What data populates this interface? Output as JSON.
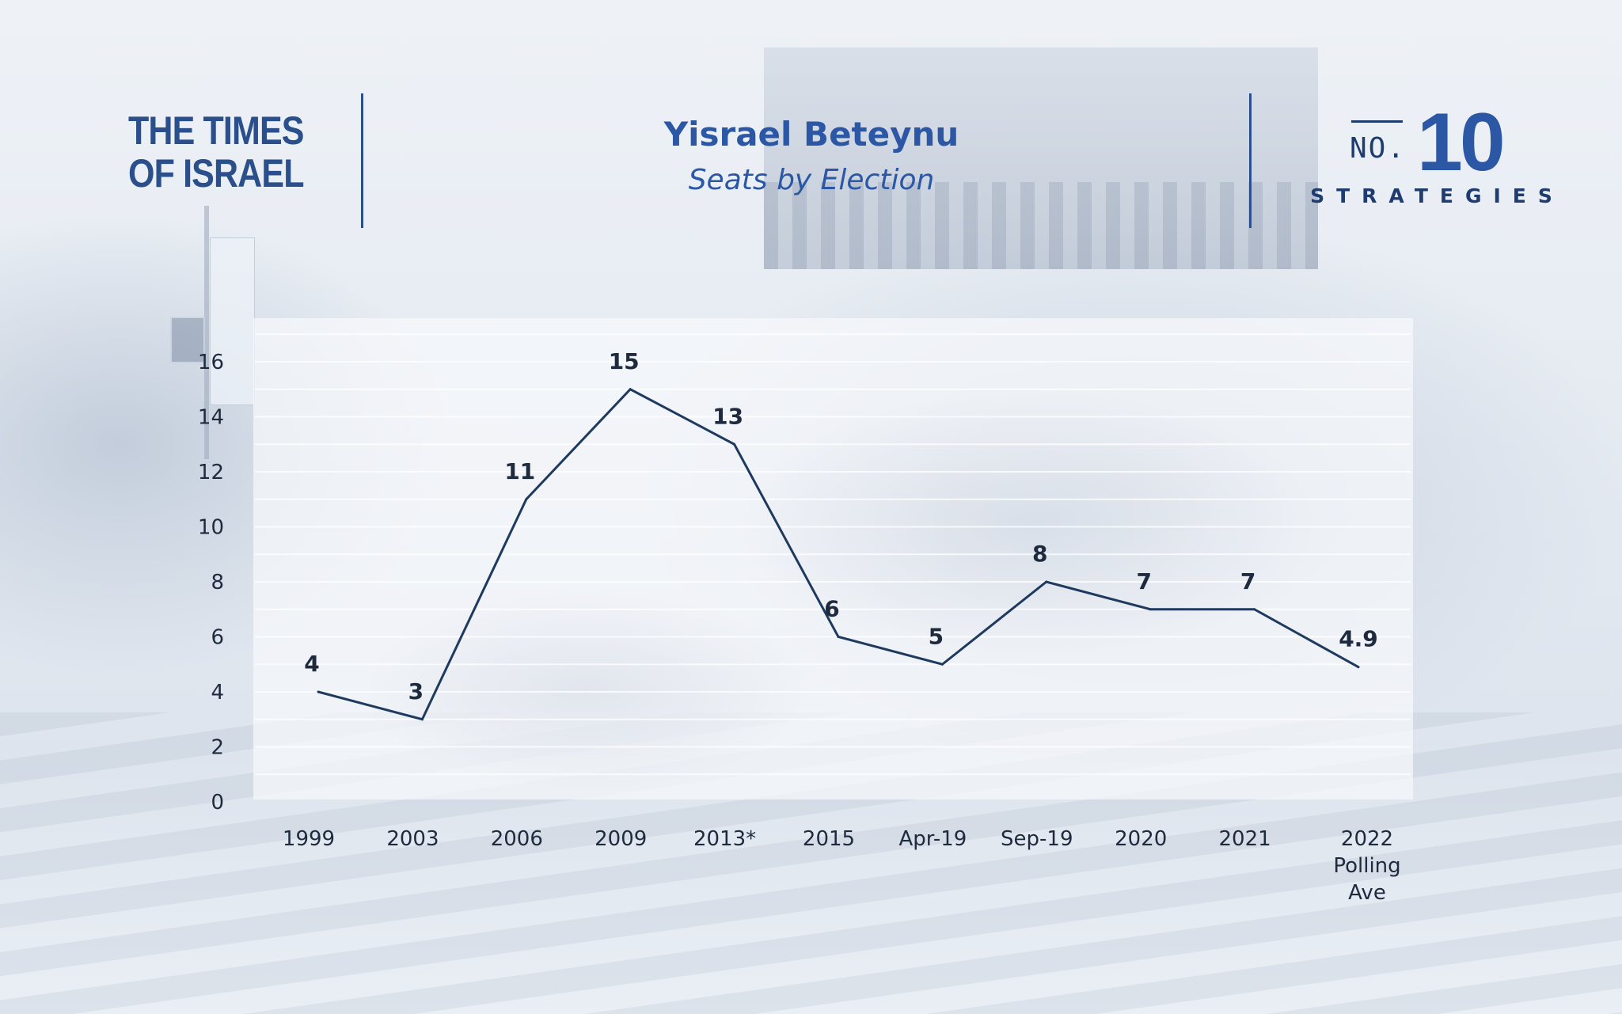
{
  "brand": {
    "logo_lines": [
      "THE TIMES",
      "OF ISRAEL"
    ]
  },
  "header": {
    "title": "Yisrael Beteynu",
    "subtitle": "Seats by Election"
  },
  "badge": {
    "prefix": "NO.",
    "number": "10",
    "word": "STRATEGIES"
  },
  "colors": {
    "accent": "#2c57a5",
    "brand_dark": "#1f3c70",
    "line": "#1e3a5f",
    "text": "#1e2a3e"
  },
  "chart_data": {
    "type": "line",
    "title": "Yisrael Beteynu",
    "subtitle": "Seats by Election",
    "xlabel": "",
    "ylabel": "",
    "ylim": [
      0,
      16
    ],
    "yticks": [
      0,
      2,
      4,
      6,
      8,
      10,
      12,
      14,
      16
    ],
    "grid": true,
    "categories": [
      "1999",
      "2003",
      "2006",
      "2009",
      "2013*",
      "2015",
      "Apr-19",
      "Sep-19",
      "2020",
      "2021",
      "2022 Polling Ave"
    ],
    "category_label_lines": [
      [
        "1999"
      ],
      [
        "2003"
      ],
      [
        "2006"
      ],
      [
        "2009"
      ],
      [
        "2013*"
      ],
      [
        "2015"
      ],
      [
        "Apr-19"
      ],
      [
        "Sep-19"
      ],
      [
        "2020"
      ],
      [
        "2021"
      ],
      [
        "2022",
        "Polling",
        "Ave"
      ]
    ],
    "values": [
      4,
      3,
      11,
      15,
      13,
      6,
      5,
      8,
      7,
      7,
      4.9
    ],
    "data_labels": [
      "4",
      "3",
      "11",
      "15",
      "13",
      "6",
      "5",
      "8",
      "7",
      "7",
      "4.9"
    ]
  }
}
